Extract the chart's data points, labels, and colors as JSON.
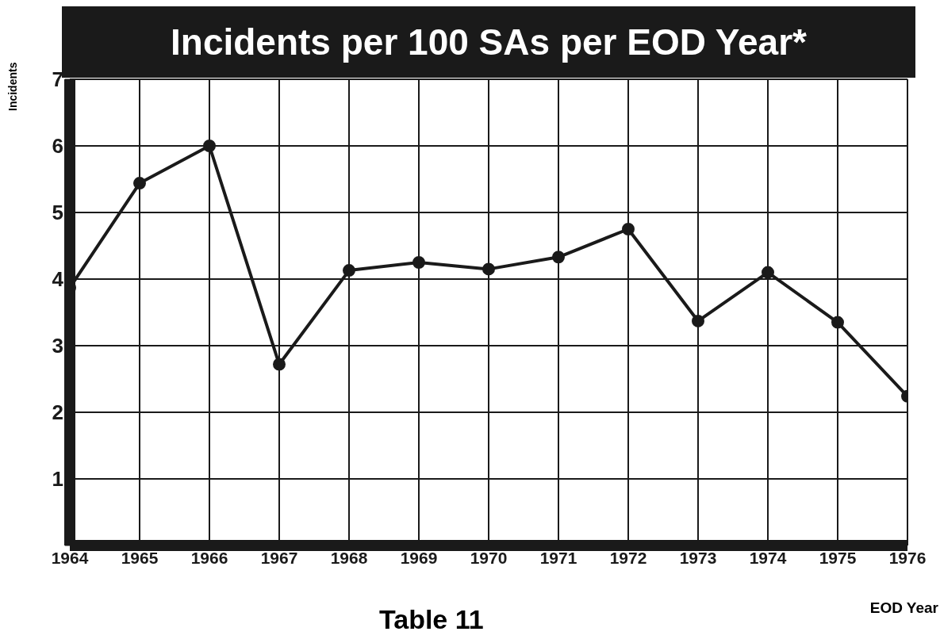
{
  "chart_data": {
    "type": "line",
    "title": "Incidents per 100 SAs per EOD Year*",
    "ylabel": "Incidents",
    "xlabel": "EOD Year",
    "annotations": [
      "Table 11"
    ],
    "x": [
      1964,
      1965,
      1966,
      1967,
      1968,
      1969,
      1970,
      1971,
      1972,
      1973,
      1974,
      1975,
      1976
    ],
    "series": [
      {
        "color": "#1a1a1a",
        "values": [
          3.87,
          5.44,
          6.0,
          2.72,
          4.13,
          4.25,
          4.15,
          4.33,
          4.75,
          3.37,
          4.1,
          3.35,
          2.24
        ]
      }
    ],
    "xlim": [
      1964,
      1976
    ],
    "xticks": [
      1964,
      1965,
      1966,
      1967,
      1968,
      1969,
      1970,
      1971,
      1972,
      1973,
      1974,
      1975,
      1976
    ],
    "ylim": [
      0,
      7
    ],
    "yticks": [
      {
        "value": 0,
        "label": null
      },
      1,
      2,
      3,
      4,
      5,
      6,
      7
    ],
    "grid": true,
    "marker": "circle",
    "line_style": "solid",
    "legend": false
  }
}
